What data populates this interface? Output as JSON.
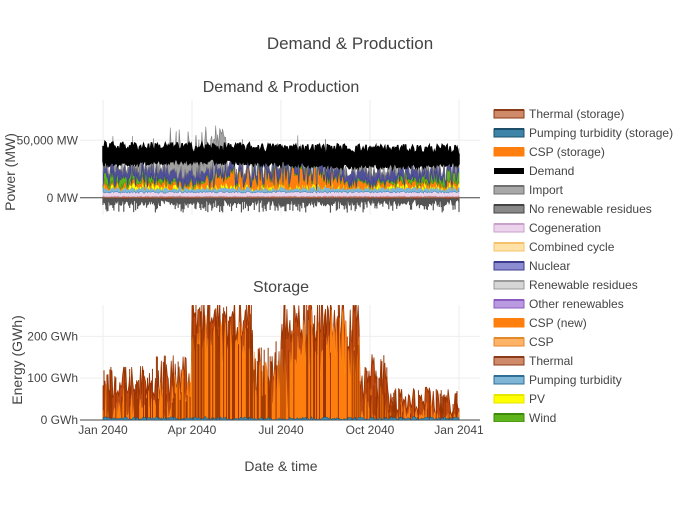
{
  "chart_data": {
    "title": "Demand & Production",
    "xlabel": "Date & time",
    "x_ticks": [
      "Jan 2040",
      "Apr 2040",
      "Jul 2040",
      "Oct 2040",
      "Jan 2041"
    ],
    "x_tick_months": [
      0,
      3,
      6,
      9,
      12
    ],
    "panels": [
      {
        "type": "area",
        "title": "Demand & Production",
        "ylabel": "Power (MW)",
        "ylim": [
          -15000,
          85000
        ],
        "y_ticks": [
          {
            "value": 0,
            "label": "0 MW"
          },
          {
            "value": 50000,
            "label": "50,000 MW"
          }
        ],
        "grid": true,
        "series_ranges_mw": {
          "Demand": [
            27000,
            52000
          ],
          "Import": [
            0,
            85000
          ],
          "Nuclear": [
            8000,
            24000
          ],
          "Wind": [
            6000,
            24000
          ],
          "CSP (new)": [
            4000,
            18000
          ],
          "PV": [
            2000,
            10000
          ],
          "Pumping turbidity": [
            0,
            6000
          ],
          "Cogeneration": [
            3000,
            5000
          ],
          "Thermal": [
            0,
            3000
          ],
          "Pumping turbidity (storage)": [
            -10000,
            0
          ]
        }
      },
      {
        "type": "area",
        "title": "Storage",
        "ylabel": "Energy (GWh)",
        "ylim": [
          0,
          275
        ],
        "y_ticks": [
          {
            "value": 0,
            "label": "0 GWh"
          },
          {
            "value": 100,
            "label": "100 GWh"
          },
          {
            "value": 200,
            "label": "200 GWh"
          }
        ],
        "grid": true,
        "series_ranges_gwh": {
          "CSP (storage)": [
            0,
            275
          ],
          "Thermal (storage)": [
            0,
            275
          ],
          "Pumping turbidity (storage)": [
            0,
            20
          ]
        }
      }
    ],
    "legend": {
      "placement": "right",
      "entries": [
        {
          "name": "Thermal (storage)",
          "color": "#cf8a6a",
          "border": "#8b3a1a"
        },
        {
          "name": "Pumping turbidity (storage)",
          "color": "#3d84a8",
          "border": "#1d4f6b"
        },
        {
          "name": "CSP (storage)",
          "color": "#ff7f0e",
          "border": "#ff7f0e"
        },
        {
          "name": "Demand",
          "color": "#000000",
          "border": "#000000"
        },
        {
          "name": "Import",
          "color": "#a8a8a8",
          "border": "#707070"
        },
        {
          "name": "No renewable residues",
          "color": "#888888",
          "border": "#444444"
        },
        {
          "name": "Cogeneration",
          "color": "#ecd3ec",
          "border": "#c9a0c9"
        },
        {
          "name": "Combined cycle",
          "color": "#ffe2a8",
          "border": "#f5c26b"
        },
        {
          "name": "Nuclear",
          "color": "#8c8cd0",
          "border": "#3d3d8f"
        },
        {
          "name": "Renewable residues",
          "color": "#d6d6d6",
          "border": "#9a9a9a"
        },
        {
          "name": "Other renewables",
          "color": "#b99ae0",
          "border": "#8a5cc2"
        },
        {
          "name": "CSP (new)",
          "color": "#ff7f0e",
          "border": "#ff7f0e"
        },
        {
          "name": "CSP",
          "color": "#ffb366",
          "border": "#e08a2c"
        },
        {
          "name": "Thermal",
          "color": "#cf8a6a",
          "border": "#8b3a1a"
        },
        {
          "name": "Pumping turbidity",
          "color": "#7fb6d6",
          "border": "#2f6f95"
        },
        {
          "name": "PV",
          "color": "#ffff00",
          "border": "#e6e600"
        },
        {
          "name": "Wind",
          "color": "#5fb41c",
          "border": "#3e8a0a"
        }
      ]
    }
  }
}
